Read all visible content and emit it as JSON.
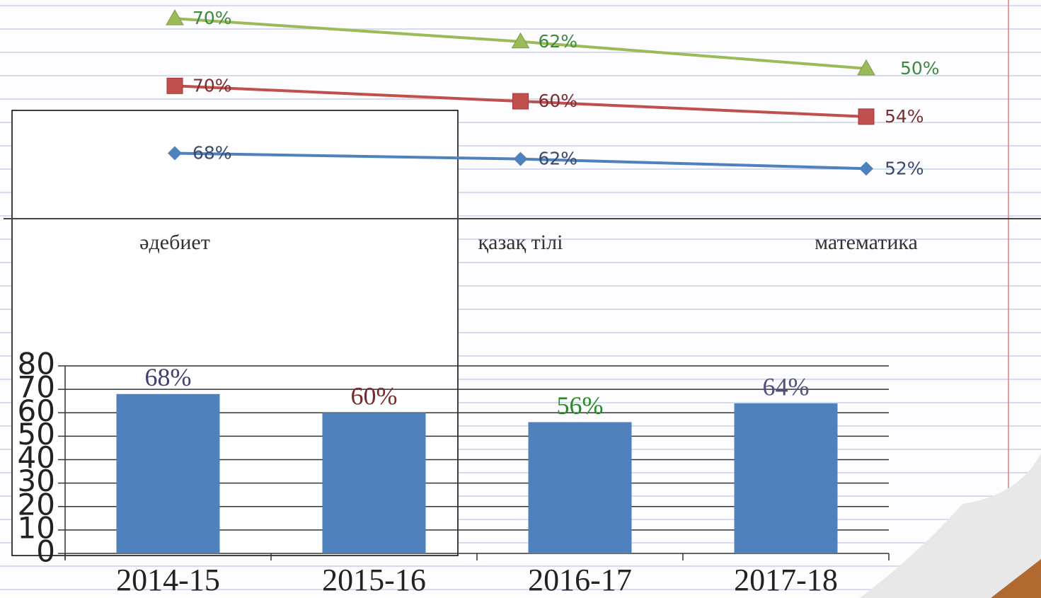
{
  "chart_data": [
    {
      "type": "line",
      "stacked": true,
      "categories": [
        "әдебиет",
        "қазақ тілі",
        "математика"
      ],
      "series": [
        {
          "color": "#4f81bd",
          "marker": "diamond",
          "label_color": "#3a4a6a",
          "values": [
            68,
            62,
            52
          ],
          "value_labels": [
            "68%",
            "62%",
            "52%"
          ]
        },
        {
          "color": "#c0504d",
          "marker": "square",
          "label_color": "#7a3030",
          "values": [
            70,
            60,
            54
          ],
          "value_labels": [
            "70%",
            "60%",
            "54%"
          ]
        },
        {
          "color": "#9bbb59",
          "marker": "triangle",
          "label_color": "#3e8a3e",
          "values": [
            70,
            62,
            50
          ],
          "value_labels": [
            "70%",
            "62%",
            "50%"
          ]
        }
      ]
    },
    {
      "type": "bar",
      "color": "#4f81bd",
      "categories": [
        "2014-15",
        "2015-16",
        "2016-17",
        "2017-18"
      ],
      "values": [
        68,
        60,
        56,
        64
      ],
      "value_labels": [
        "68%",
        "60%",
        "56%",
        "64%"
      ],
      "label_colors": [
        "#404070",
        "#7a2a2a",
        "#2a8a2a",
        "#505080"
      ],
      "ylim": [
        0,
        80
      ],
      "yticks": [
        0,
        10,
        20,
        30,
        40,
        50,
        60,
        70,
        80
      ],
      "grid": true
    }
  ]
}
